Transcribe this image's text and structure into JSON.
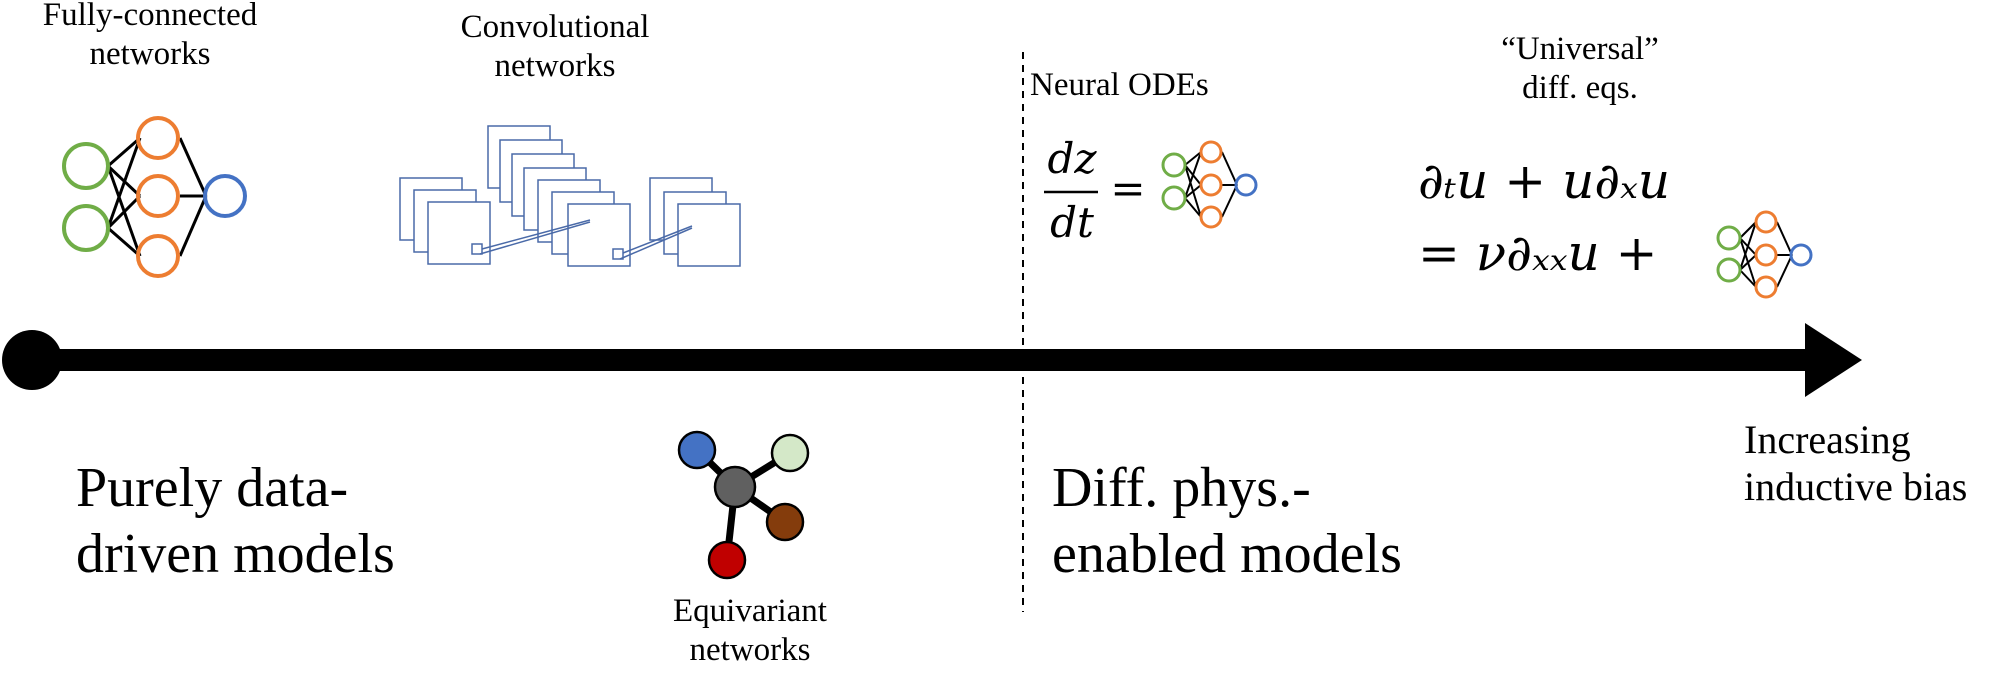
{
  "timeline": {
    "arrow_label": [
      "Increasing",
      "inductive bias"
    ]
  },
  "categories": {
    "left": [
      "Purely data-",
      "driven models"
    ],
    "right": [
      "Diff. phys.-",
      "enabled models"
    ]
  },
  "networks": {
    "fully_connected": [
      "Fully-connected",
      "networks"
    ],
    "convolutional": [
      "Convolutional",
      "networks"
    ],
    "equivariant": [
      "Equivariant",
      "networks"
    ],
    "neural_odes": "Neural ODEs",
    "universal": [
      "“Universal”",
      "diff. eqs."
    ]
  },
  "equations": {
    "ode_numerator": "dz",
    "ode_denominator": "dt",
    "ode_equals": "=",
    "pde_line1": "∂ₜu + u∂ₓu",
    "pde_line2": "= ν∂ₓₓu +"
  },
  "colors": {
    "input_node": "#70ad47",
    "hidden_node": "#ed7d31",
    "output_node": "#4472c4",
    "conv_line": "#4a6aa8",
    "equivariant_nodes": [
      "#4472c4",
      "#d4e8c8",
      "#606060",
      "#843c0c",
      "#c00000"
    ]
  }
}
